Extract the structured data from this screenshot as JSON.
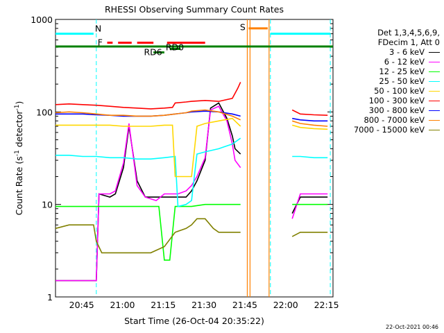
{
  "chart_data": {
    "type": "line",
    "title": "RHESSI Observing Summary Count Rates",
    "xlabel": "Start Time (26-Oct-04 20:35:22)",
    "ylabel_main": "Count Rate (s",
    "ylabel_sup1": "-1",
    "ylabel_mid": " detector",
    "ylabel_sup2": "-1",
    "ylabel_end": ")",
    "y_scale": "log",
    "ylim": [
      1,
      1000
    ],
    "xlim_minutes": [
      0,
      102
    ],
    "x_ticks": [
      {
        "label": "20:45",
        "minutes": 9.6
      },
      {
        "label": "21:00",
        "minutes": 24.6
      },
      {
        "label": "21:15",
        "minutes": 39.6
      },
      {
        "label": "21:30",
        "minutes": 54.6
      },
      {
        "label": "21:45",
        "minutes": 69.6
      },
      {
        "label": "22:00",
        "minutes": 84.6
      },
      {
        "label": "22:15",
        "minutes": 99.6
      }
    ],
    "y_ticks": [
      {
        "label": "1",
        "value": 1
      },
      {
        "label": "10",
        "value": 10
      },
      {
        "label": "100",
        "value": 100
      },
      {
        "label": "1000",
        "value": 1000
      }
    ],
    "legend_header": [
      "Det 1,3,4,5,6,9,",
      "FDecim 1, Att 0"
    ],
    "series": [
      {
        "name": "3 - 6 keV",
        "color": "#000000",
        "x": [
          0,
          15,
          16,
          20,
          22,
          25,
          27,
          30,
          33,
          37,
          40,
          45,
          48,
          50,
          52,
          55,
          57,
          60,
          63,
          65,
          66,
          68,
          72,
          85,
          87,
          90,
          95,
          100
        ],
        "y": [
          1.5,
          1.5,
          13,
          12,
          13,
          25,
          70,
          18,
          12,
          12,
          12,
          12,
          12,
          14,
          18,
          30,
          110,
          125,
          85,
          55,
          40,
          35,
          null,
          null,
          8,
          12,
          12,
          12
        ]
      },
      {
        "name": "6 - 12 keV",
        "color": "#ff00ff",
        "x": [
          0,
          15,
          16,
          20,
          22,
          25,
          27,
          30,
          33,
          37,
          40,
          45,
          48,
          50,
          52,
          55,
          57,
          60,
          63,
          65,
          66,
          68,
          72,
          85,
          87,
          90,
          95,
          100
        ],
        "y": [
          1.5,
          1.5,
          13,
          13,
          14,
          28,
          75,
          16,
          12,
          11,
          13,
          13,
          14,
          16,
          20,
          32,
          105,
          115,
          80,
          45,
          30,
          25,
          null,
          null,
          7,
          13,
          13,
          13
        ]
      },
      {
        "name": "12 - 25 keV",
        "color": "#00ff00",
        "x": [
          0,
          15,
          20,
          25,
          30,
          35,
          38,
          40,
          42,
          44,
          46,
          50,
          55,
          60,
          65,
          68,
          72,
          85,
          87,
          90,
          95,
          100
        ],
        "y": [
          9.5,
          9.5,
          9.5,
          9.5,
          9.5,
          9.5,
          9.5,
          2.5,
          2.5,
          9.5,
          9.5,
          9.5,
          10,
          10,
          10,
          10,
          null,
          null,
          10,
          10,
          10,
          10
        ]
      },
      {
        "name": "25 - 50 keV",
        "color": "#00ffff",
        "x": [
          0,
          5,
          10,
          15,
          20,
          25,
          30,
          35,
          40,
          44,
          45,
          48,
          50,
          52,
          55,
          60,
          62,
          65,
          68,
          72,
          85,
          87,
          90,
          95,
          100
        ],
        "y": [
          34,
          34,
          33,
          33,
          32,
          32,
          31,
          31,
          32,
          33,
          9.5,
          10,
          11,
          35,
          37,
          40,
          42,
          45,
          52,
          null,
          null,
          33,
          33,
          32,
          32
        ]
      },
      {
        "name": "50 - 100 keV",
        "color": "#ffd700",
        "x": [
          0,
          10,
          15,
          20,
          25,
          30,
          35,
          40,
          43,
          44,
          48,
          50,
          52,
          55,
          60,
          65,
          68,
          72,
          85,
          87,
          90,
          95,
          100
        ],
        "y": [
          72,
          72,
          72,
          72,
          70,
          70,
          70,
          72,
          72,
          20,
          20,
          20,
          70,
          75,
          80,
          85,
          70,
          null,
          null,
          72,
          68,
          66,
          65
        ]
      },
      {
        "name": "100 - 300 keV",
        "color": "#ff0000",
        "x": [
          0,
          5,
          10,
          15,
          20,
          25,
          30,
          35,
          40,
          43,
          44,
          48,
          50,
          55,
          60,
          65,
          67,
          68,
          72,
          85,
          87,
          90,
          95,
          100
        ],
        "y": [
          120,
          122,
          120,
          118,
          115,
          112,
          110,
          108,
          110,
          112,
          125,
          128,
          130,
          133,
          130,
          140,
          180,
          210,
          null,
          null,
          105,
          95,
          93,
          92
        ]
      },
      {
        "name": "300 - 800 keV",
        "color": "#0000ff",
        "x": [
          0,
          10,
          15,
          20,
          25,
          30,
          35,
          40,
          44,
          48,
          50,
          55,
          60,
          65,
          68,
          72,
          85,
          87,
          90,
          95,
          100
        ],
        "y": [
          95,
          95,
          93,
          92,
          90,
          90,
          90,
          92,
          95,
          98,
          100,
          102,
          100,
          95,
          90,
          null,
          null,
          85,
          82,
          80,
          80
        ]
      },
      {
        "name": "800 - 7000 keV",
        "color": "#ff8000",
        "x": [
          0,
          5,
          10,
          15,
          20,
          25,
          30,
          35,
          40,
          44,
          48,
          50,
          55,
          60,
          65,
          68,
          72,
          85,
          87,
          90,
          95,
          100
        ],
        "y": [
          98,
          100,
          98,
          95,
          92,
          92,
          90,
          90,
          92,
          95,
          98,
          102,
          105,
          100,
          90,
          82,
          null,
          null,
          80,
          75,
          72,
          70
        ]
      },
      {
        "name": "7000 - 15000 keV",
        "color": "#808000",
        "x": [
          0,
          5,
          10,
          14,
          15,
          17,
          20,
          25,
          30,
          35,
          40,
          44,
          48,
          50,
          52,
          55,
          58,
          60,
          62,
          65,
          68,
          72,
          85,
          87,
          90,
          95,
          100
        ],
        "y": [
          5.5,
          6,
          6,
          6,
          4,
          3,
          3,
          3,
          3,
          3,
          3.5,
          5,
          5.5,
          6,
          7,
          7,
          5.5,
          5,
          5,
          5,
          5,
          null,
          null,
          4.5,
          5,
          5,
          5
        ]
      }
    ],
    "annotations": {
      "N": "N",
      "F": "F",
      "S": "S",
      "RD6": "RD6",
      "RD0": "RD0"
    },
    "vertical_markers_minutes": {
      "cyan_dashed": [
        15,
        79,
        101
      ],
      "orange_solid": [
        70.5,
        71.5,
        78.5
      ]
    },
    "flag_bars": [
      {
        "label": "N",
        "color": "#00ffff",
        "start": 0,
        "end": 14,
        "level": 700
      },
      {
        "label": "N",
        "color": "#00ffff",
        "start": 79,
        "end": 101,
        "level": 700
      },
      {
        "label": "F",
        "color": "#ff0000",
        "start": 19,
        "end": 21,
        "level": 560,
        "dashed": false
      },
      {
        "label": "F",
        "color": "#ff0000",
        "start": 23,
        "end": 28,
        "level": 560
      },
      {
        "label": "F",
        "color": "#ff0000",
        "start": 30,
        "end": 36,
        "level": 560
      },
      {
        "label": "F",
        "color": "#ff0000",
        "start": 41,
        "end": 55,
        "level": 560
      },
      {
        "label": "S",
        "color": "#ff8000",
        "start": 71,
        "end": 78,
        "level": 800
      },
      {
        "label": "green",
        "color": "#008000",
        "start": 0,
        "end": 102,
        "level": 510
      },
      {
        "label": "RD6",
        "color": "#008000",
        "start": 36,
        "end": 40,
        "level": 440
      },
      {
        "label": "RD0",
        "color": "#008000",
        "start": 42,
        "end": 46,
        "level": 480
      }
    ],
    "footer_date": "22-Oct-2021 00:46"
  }
}
